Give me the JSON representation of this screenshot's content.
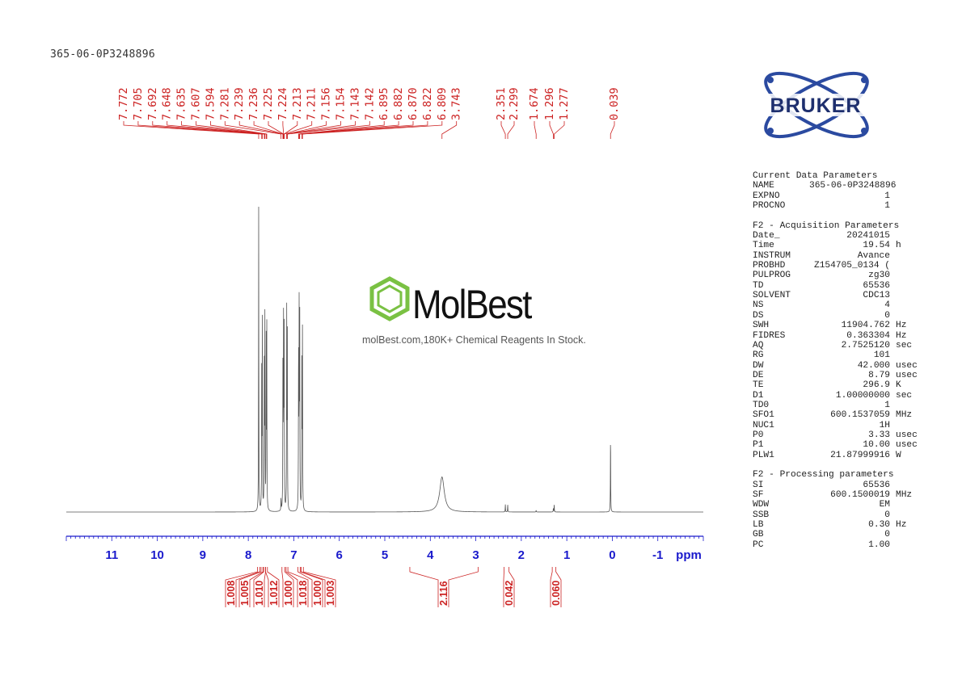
{
  "title": "365-06-0P3248896",
  "watermark": {
    "name": "MolBest",
    "subtitle": "molBest.com,180K+ Chemical Reagents In Stock."
  },
  "logo": {
    "text": "BRUKER"
  },
  "colors": {
    "spectrum": "#555555",
    "peak_labels": "#cc2222",
    "axis": "#1a1acc",
    "logo": "#1e3a8a",
    "watermark": "#7ac143"
  },
  "chart_data": {
    "type": "line",
    "xlabel": "ppm",
    "xlim": [
      12.0,
      -2.0
    ],
    "x_ticks": [
      "11",
      "10",
      "9",
      "8",
      "7",
      "6",
      "5",
      "4",
      "3",
      "2",
      "1",
      "0",
      "-1"
    ],
    "x_tick_values": [
      11,
      10,
      9,
      8,
      7,
      6,
      5,
      4,
      3,
      2,
      1,
      0,
      -1
    ],
    "grid": false,
    "peaks": [
      {
        "ppm": 7.772,
        "intensity": 1.0
      },
      {
        "ppm": 7.705,
        "intensity": 0.45
      },
      {
        "ppm": 7.692,
        "intensity": 0.62
      },
      {
        "ppm": 7.648,
        "intensity": 0.55
      },
      {
        "ppm": 7.635,
        "intensity": 0.62
      },
      {
        "ppm": 7.607,
        "intensity": 0.55
      },
      {
        "ppm": 7.594,
        "intensity": 0.6
      },
      {
        "ppm": 7.281,
        "intensity": 0.04
      },
      {
        "ppm": 7.239,
        "intensity": 0.45
      },
      {
        "ppm": 7.236,
        "intensity": 0.1
      },
      {
        "ppm": 7.225,
        "intensity": 0.55
      },
      {
        "ppm": 7.224,
        "intensity": 0.1
      },
      {
        "ppm": 7.213,
        "intensity": 0.52
      },
      {
        "ppm": 7.211,
        "intensity": 0.1
      },
      {
        "ppm": 7.156,
        "intensity": 0.55
      },
      {
        "ppm": 7.154,
        "intensity": 0.12
      },
      {
        "ppm": 7.143,
        "intensity": 0.5
      },
      {
        "ppm": 7.142,
        "intensity": 0.1
      },
      {
        "ppm": 6.895,
        "intensity": 0.55
      },
      {
        "ppm": 6.882,
        "intensity": 0.68
      },
      {
        "ppm": 6.87,
        "intensity": 0.66
      },
      {
        "ppm": 6.822,
        "intensity": 0.56
      },
      {
        "ppm": 6.809,
        "intensity": 0.58
      },
      {
        "ppm": 3.743,
        "intensity": 0.115,
        "broad": true
      },
      {
        "ppm": 2.351,
        "intensity": 0.025
      },
      {
        "ppm": 2.299,
        "intensity": 0.025
      },
      {
        "ppm": 1.674,
        "intensity": 0.006
      },
      {
        "ppm": 1.296,
        "intensity": 0.012
      },
      {
        "ppm": 1.277,
        "intensity": 0.025
      },
      {
        "ppm": 0.039,
        "intensity": 0.26
      }
    ],
    "peak_labels": [
      "7.772",
      "7.705",
      "7.692",
      "7.648",
      "7.635",
      "7.607",
      "7.594",
      "7.281",
      "7.239",
      "7.236",
      "7.225",
      "7.224",
      "7.213",
      "7.211",
      "7.156",
      "7.154",
      "7.143",
      "7.142",
      "6.895",
      "6.882",
      "6.870",
      "6.822",
      "6.809",
      "3.743",
      "2.351",
      "2.299",
      "1.674",
      "1.296",
      "1.277",
      "0.039"
    ],
    "integrals": [
      {
        "value": "1.008",
        "from": 7.8,
        "to": 7.75
      },
      {
        "value": "1.005",
        "from": 7.72,
        "to": 7.68
      },
      {
        "value": "1.010",
        "from": 7.66,
        "to": 7.62
      },
      {
        "value": "1.012",
        "from": 7.62,
        "to": 7.58
      },
      {
        "value": "1.000",
        "from": 7.26,
        "to": 7.2
      },
      {
        "value": "1.018",
        "from": 7.17,
        "to": 7.13
      },
      {
        "value": "1.000",
        "from": 6.91,
        "to": 6.86
      },
      {
        "value": "1.003",
        "from": 6.84,
        "to": 6.79
      },
      {
        "value": "2.116",
        "from": 4.45,
        "to": 2.95
      },
      {
        "value": "0.042",
        "from": 2.38,
        "to": 2.27
      },
      {
        "value": "0.060",
        "from": 1.32,
        "to": 1.24
      }
    ]
  },
  "params": {
    "sections": [
      {
        "header": "Current Data Parameters",
        "rows": [
          [
            "NAME",
            "365-06-0P3248896",
            ""
          ],
          [
            "EXPNO",
            "1",
            ""
          ],
          [
            "PROCNO",
            "1",
            ""
          ]
        ]
      },
      {
        "header": "F2 - Acquisition Parameters",
        "rows": [
          [
            "Date_",
            "20241015",
            ""
          ],
          [
            "Time",
            "19.54",
            "h"
          ],
          [
            "INSTRUM",
            "Avance",
            ""
          ],
          [
            "PROBHD",
            "Z154705_0134 (",
            ""
          ],
          [
            "PULPROG",
            "zg30",
            ""
          ],
          [
            "TD",
            "65536",
            ""
          ],
          [
            "SOLVENT",
            "CDC13",
            ""
          ],
          [
            "NS",
            "4",
            ""
          ],
          [
            "DS",
            "0",
            ""
          ],
          [
            "SWH",
            "11904.762",
            "Hz"
          ],
          [
            "FIDRES",
            "0.363304",
            "Hz"
          ],
          [
            "AQ",
            "2.7525120",
            "sec"
          ],
          [
            "RG",
            "101",
            ""
          ],
          [
            "DW",
            "42.000",
            "usec"
          ],
          [
            "DE",
            "8.79",
            "usec"
          ],
          [
            "TE",
            "296.9",
            "K"
          ],
          [
            "D1",
            "1.00000000",
            "sec"
          ],
          [
            "TD0",
            "1",
            ""
          ],
          [
            "SFO1",
            "600.1537059",
            "MHz"
          ],
          [
            "NUC1",
            "1H",
            ""
          ],
          [
            "P0",
            "3.33",
            "usec"
          ],
          [
            "P1",
            "10.00",
            "usec"
          ],
          [
            "PLW1",
            "21.87999916",
            "W"
          ]
        ]
      },
      {
        "header": "F2 - Processing parameters",
        "rows": [
          [
            "SI",
            "65536",
            ""
          ],
          [
            "SF",
            "600.1500019",
            "MHz"
          ],
          [
            "WDW",
            "EM",
            ""
          ],
          [
            "SSB",
            "0",
            ""
          ],
          [
            "LB",
            "0.30",
            "Hz"
          ],
          [
            "GB",
            "0",
            ""
          ],
          [
            "PC",
            "1.00",
            ""
          ]
        ]
      }
    ]
  }
}
